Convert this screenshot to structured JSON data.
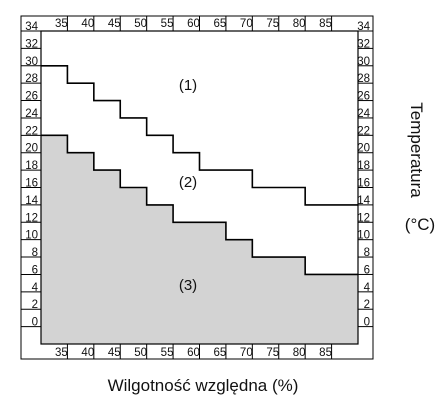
{
  "chart_data": {
    "type": "area",
    "x_ticks": [
      "35",
      "40",
      "45",
      "50",
      "55",
      "60",
      "65",
      "70",
      "75",
      "80",
      "85"
    ],
    "y_ticks": [
      "0",
      "2",
      "4",
      "6",
      "8",
      "10",
      "12",
      "14",
      "16",
      "18",
      "20",
      "22",
      "24",
      "26",
      "28",
      "30",
      "32",
      "34"
    ],
    "xlim": [
      30,
      90
    ],
    "ylim": [
      -1,
      35
    ],
    "xlabel": "Wilgotność względna (%)",
    "ylabel": "Temperatura",
    "ylabel_unit": "(°C)",
    "upper_boundary": {
      "x": [
        30,
        35,
        40,
        45,
        50,
        55,
        60,
        65,
        70,
        75,
        80,
        85,
        90
      ],
      "y": [
        31,
        29,
        27,
        25,
        23,
        21,
        19,
        19,
        17,
        17,
        15,
        15,
        15
      ]
    },
    "lower_boundary": {
      "x": [
        30,
        35,
        40,
        45,
        50,
        55,
        60,
        65,
        70,
        75,
        80,
        85,
        90
      ],
      "y": [
        23,
        21,
        19,
        17,
        15,
        13,
        13,
        11,
        9,
        9,
        7,
        7,
        7
      ]
    },
    "regions": [
      "(1)",
      "(2)",
      "(3)"
    ],
    "colors": {
      "shaded": "#d3d3d3",
      "line": "#000000",
      "background": "#ffffff"
    }
  }
}
